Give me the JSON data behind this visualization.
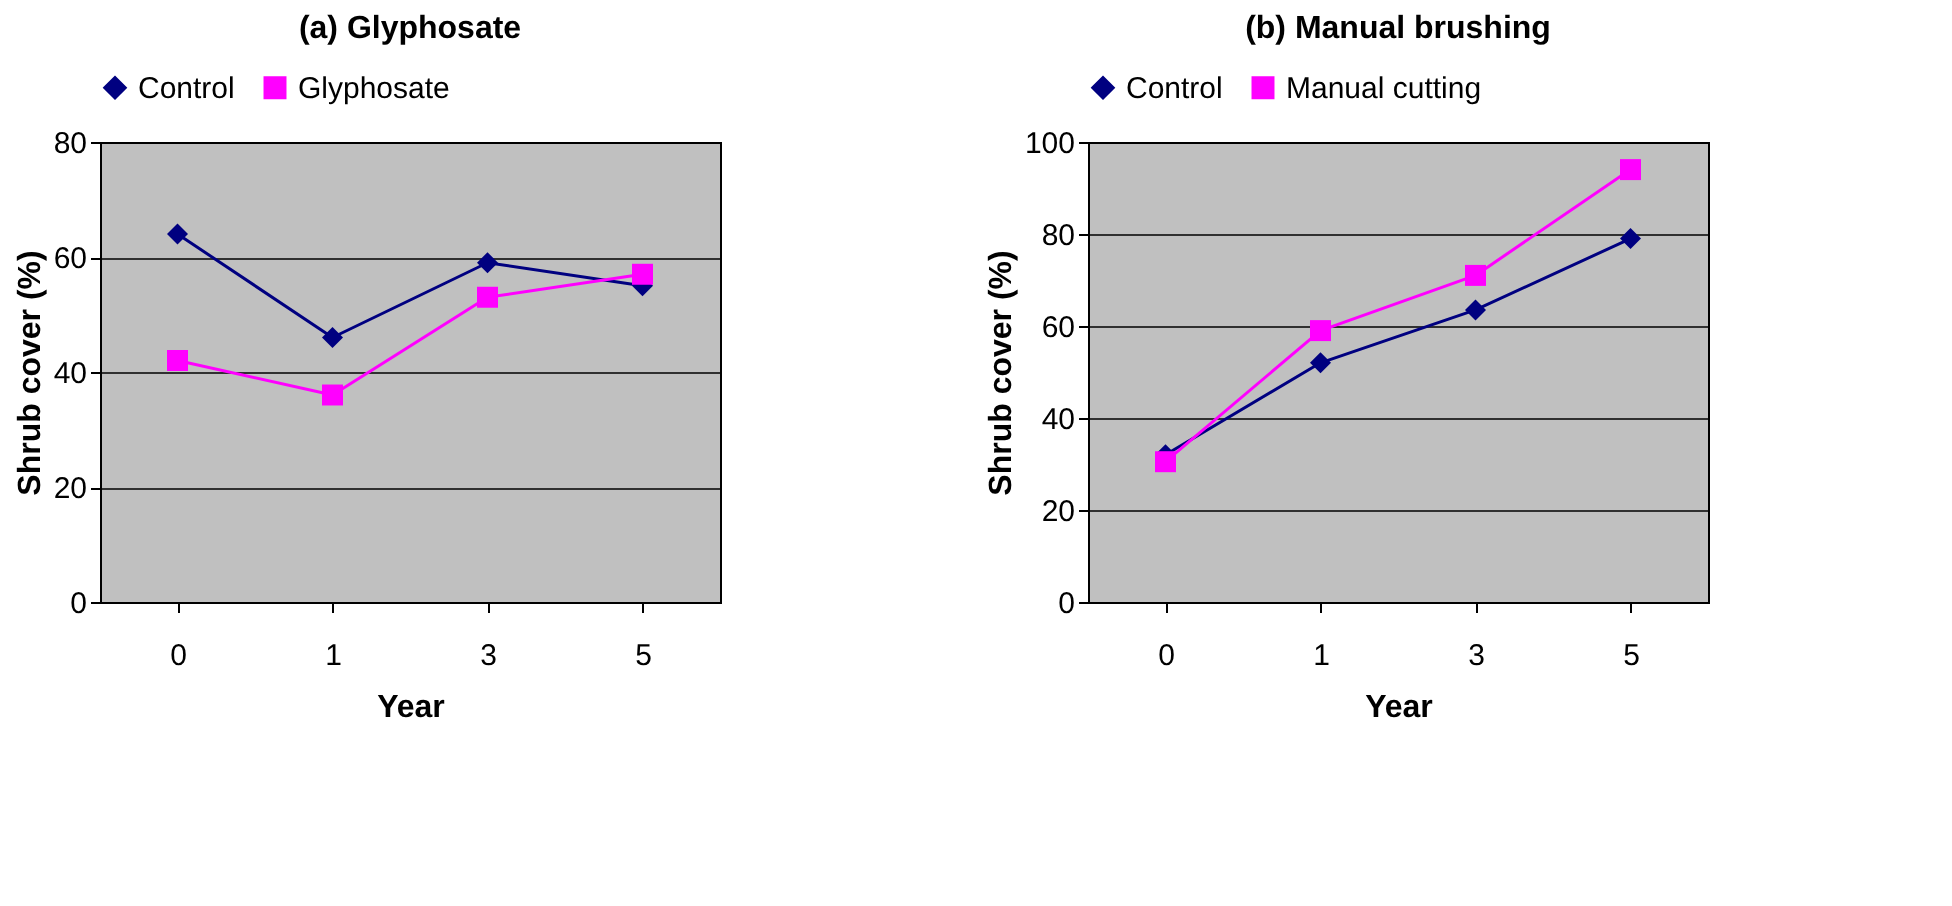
{
  "chart_data": [
    {
      "type": "line",
      "title": "(a)  Glyphosate",
      "xlabel": "Year",
      "ylabel": "Shrub cover (%)",
      "categories": [
        "0",
        "1",
        "3",
        "5"
      ],
      "ylim": [
        0,
        80
      ],
      "yticks": [
        0,
        20,
        40,
        60,
        80
      ],
      "grid": "y",
      "legend": "top",
      "line_style": "solid",
      "series": [
        {
          "name": "Control",
          "color": "#000080",
          "marker": "diamond",
          "values": [
            64,
            46,
            59,
            55
          ]
        },
        {
          "name": "Glyphosate",
          "color": "#ff00ff",
          "marker": "square",
          "values": [
            42,
            36,
            53,
            57
          ]
        }
      ]
    },
    {
      "type": "line",
      "title": "(b)  Manual brushing",
      "xlabel": "Year",
      "ylabel": "Shrub cover (%)",
      "categories": [
        "0",
        "1",
        "3",
        "5"
      ],
      "ylim": [
        0,
        100
      ],
      "yticks": [
        0,
        20,
        40,
        60,
        80,
        100
      ],
      "grid": "y",
      "legend": "top",
      "line_style": "solid",
      "series": [
        {
          "name": "Control",
          "color": "#000080",
          "marker": "diamond",
          "values": [
            32,
            52,
            63.5,
            79
          ]
        },
        {
          "name": "Manual cutting",
          "color": "#ff00ff",
          "marker": "square",
          "values": [
            30.5,
            59,
            71,
            94
          ]
        }
      ]
    }
  ]
}
